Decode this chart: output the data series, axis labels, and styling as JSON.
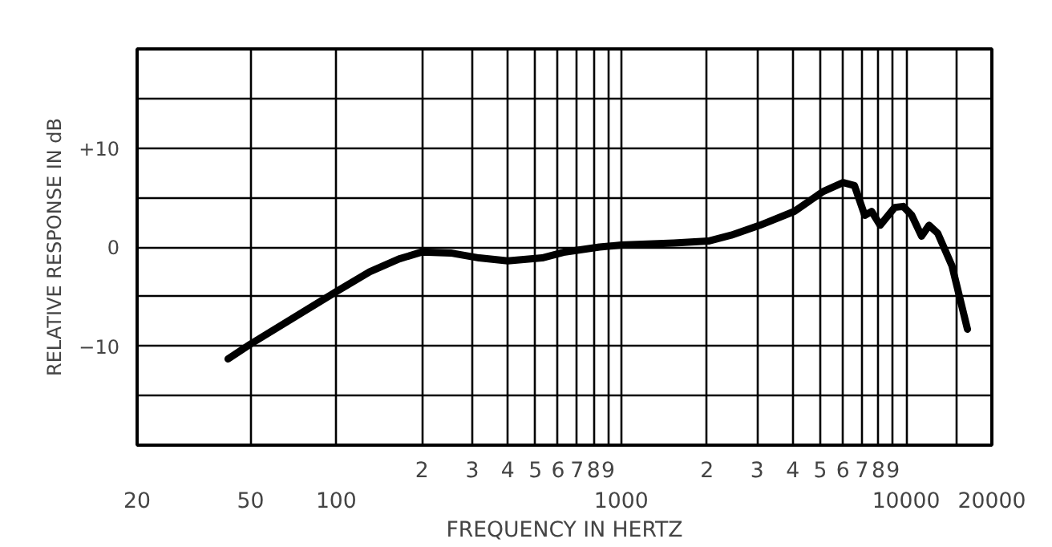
{
  "chart_data": {
    "type": "line",
    "xlabel": "FREQUENCY IN HERTZ",
    "ylabel": "RELATIVE RESPONSE IN dB",
    "log": "x",
    "grid": true,
    "xlim": [
      20,
      20000
    ],
    "ylim": [
      -20,
      20
    ],
    "xticks": [
      20,
      50,
      100,
      {
        "value": 200,
        "label": null
      },
      {
        "value": 300,
        "label": null
      },
      {
        "value": 400,
        "label": null
      },
      {
        "value": 500,
        "label": null
      },
      {
        "value": 600,
        "label": null
      },
      {
        "value": 700,
        "label": null
      },
      {
        "value": 800,
        "label": null
      },
      {
        "value": 900,
        "label": null
      },
      1000,
      {
        "value": 2000,
        "label": null
      },
      {
        "value": 3000,
        "label": null
      },
      {
        "value": 4000,
        "label": null
      },
      {
        "value": 5000,
        "label": null
      },
      {
        "value": 6000,
        "label": null
      },
      {
        "value": 7000,
        "label": null
      },
      {
        "value": 8000,
        "label": null
      },
      {
        "value": 9000,
        "label": null
      },
      10000,
      {
        "value": 15000,
        "label": null
      },
      20000
    ],
    "yticks": [
      {
        "value": -20,
        "label": null
      },
      {
        "value": -15,
        "label": null
      },
      -10,
      {
        "value": -5,
        "label": null
      },
      0,
      {
        "value": 5,
        "label": null
      },
      {
        "value": 10,
        "label": "+10"
      },
      {
        "value": 15,
        "label": null
      },
      {
        "value": 20,
        "label": null
      }
    ],
    "annotations": [
      "2",
      "3",
      "4",
      "5",
      "6",
      "7",
      "8",
      "9",
      "2",
      "3",
      "4",
      "5",
      "6",
      "7",
      "8",
      "9"
    ],
    "x": [
      41.7,
      50,
      100,
      131,
      166,
      200,
      252,
      317,
      400,
      528,
      635,
      839,
      1000,
      1531,
      2023,
      2434,
      3069,
      4055,
      5108,
      6010,
      6590,
      7160,
      7570,
      8110,
      9120,
      9770,
      10470,
      11330,
      12040,
      12910,
      14490,
      16420
    ],
    "series": [
      {
        "color": "#000000",
        "values": [
          -11.3,
          -9.8,
          -4.5,
          -2.5,
          -1.2,
          -0.5,
          -0.6,
          -1.1,
          -1.4,
          -1.1,
          -0.5,
          0,
          0.2,
          0.4,
          0.6,
          1.2,
          2.2,
          3.6,
          5.6,
          6.5,
          6.2,
          3.2,
          3.6,
          2.2,
          4.0,
          4.1,
          3.2,
          1.1,
          2.2,
          1.4,
          -1.9,
          -8.3
        ]
      }
    ]
  }
}
